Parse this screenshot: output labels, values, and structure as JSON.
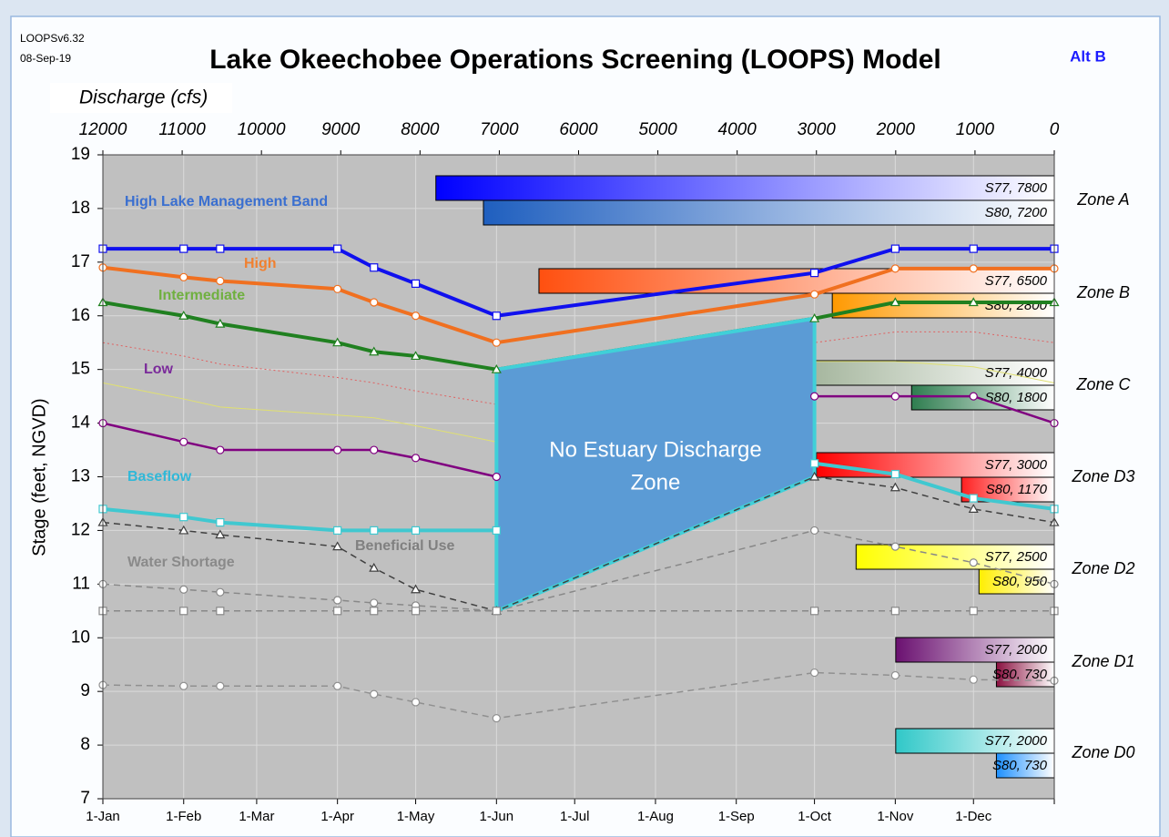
{
  "chart_data": {
    "type": "line",
    "version": "LOOPSv6.32",
    "date": "08-Sep-19",
    "title": "Lake Okeechobee Operations Screening (LOOPS) Model",
    "alternative": "Alt B",
    "x2_label": "Discharge (cfs)",
    "y_label": "Stage (feet, NGVD)",
    "xlim": [
      0,
      365
    ],
    "xticks": [
      {
        "value": 0,
        "label": "1-Jan"
      },
      {
        "value": 31,
        "label": "1-Feb"
      },
      {
        "value": 59,
        "label": "1-Mar"
      },
      {
        "value": 90,
        "label": "1-Apr"
      },
      {
        "value": 120,
        "label": "1-May"
      },
      {
        "value": 151,
        "label": "1-Jun"
      },
      {
        "value": 181,
        "label": "1-Jul"
      },
      {
        "value": 212,
        "label": "1-Aug"
      },
      {
        "value": 243,
        "label": "1-Sep"
      },
      {
        "value": 273,
        "label": "1-Oct"
      },
      {
        "value": 304,
        "label": "1-Nov"
      },
      {
        "value": 334,
        "label": "1-Dec"
      },
      {
        "value": 365,
        "label": ""
      }
    ],
    "x2lim": [
      12000,
      0
    ],
    "x2ticks": [
      12000,
      11000,
      10000,
      9000,
      8000,
      7000,
      6000,
      5000,
      4000,
      3000,
      2000,
      1000,
      0
    ],
    "ylim": [
      7,
      19
    ],
    "yticks": [
      7,
      8,
      9,
      10,
      11,
      12,
      13,
      14,
      15,
      16,
      17,
      18,
      19
    ],
    "grid": true,
    "x": [
      0,
      31,
      45,
      90,
      104,
      120,
      151,
      273,
      304,
      334,
      365
    ],
    "series": [
      {
        "name": "High Lake Management Band",
        "color": "#1010ee",
        "label_color": "#3a6fd0",
        "marker": "square",
        "style": "thick",
        "values": [
          17.25,
          17.25,
          17.25,
          17.25,
          16.9,
          16.6,
          16.0,
          16.8,
          17.25,
          17.25,
          17.25
        ]
      },
      {
        "name": "High",
        "color": "#f07020",
        "label_color": "#f08030",
        "marker": "circle",
        "style": "thick",
        "values": [
          16.9,
          16.72,
          16.65,
          16.5,
          16.25,
          16.0,
          15.5,
          16.4,
          16.88,
          16.88,
          16.88
        ]
      },
      {
        "name": "Intermediate",
        "color": "#208020",
        "label_color": "#70b040",
        "marker": "triangle",
        "style": "thick",
        "values": [
          16.25,
          16.0,
          15.85,
          15.5,
          15.33,
          15.25,
          15.0,
          15.95,
          16.25,
          16.25,
          16.25
        ]
      },
      {
        "name": "Low",
        "color": "#800080",
        "label_color": "#7a2a9a",
        "marker": "circle",
        "style": "medium",
        "values": [
          14.0,
          13.65,
          13.5,
          13.5,
          13.5,
          13.35,
          13.0,
          14.5,
          14.5,
          14.5,
          14.0
        ]
      },
      {
        "name": "Baseflow",
        "color": "#40c8d0",
        "label_color": "#30b8d8",
        "marker": "square",
        "style": "thick",
        "values": [
          12.4,
          12.25,
          12.15,
          12.0,
          12.0,
          12.0,
          12.0,
          13.25,
          13.05,
          12.6,
          12.4
        ]
      },
      {
        "name": "Beneficial Use",
        "color": "#404040",
        "label_color": "#808080",
        "marker": "triangle",
        "style": "dashed",
        "values": [
          12.15,
          12.0,
          11.92,
          11.7,
          11.3,
          10.9,
          10.5,
          13.0,
          12.8,
          12.4,
          12.15
        ]
      },
      {
        "name": "Water Shortage",
        "color": "#888888",
        "label_color": "#8a8a8a",
        "marker": "circle",
        "style": "dashed",
        "values": [
          11.0,
          10.9,
          10.85,
          10.7,
          10.65,
          10.6,
          10.5,
          12.0,
          11.7,
          11.4,
          11.0
        ]
      },
      {
        "color": "#888888",
        "marker": "square",
        "style": "dashed",
        "values": [
          10.5,
          10.5,
          10.5,
          10.5,
          10.5,
          10.5,
          10.5,
          10.5,
          10.5,
          10.5,
          10.5
        ]
      },
      {
        "color": "#909090",
        "marker": "circle",
        "style": "dashed",
        "values": [
          9.12,
          9.1,
          9.1,
          9.1,
          8.95,
          8.8,
          8.5,
          9.35,
          9.3,
          9.22,
          9.2
        ]
      },
      {
        "color": "#e06060",
        "style": "dotted",
        "values": [
          15.5,
          15.25,
          15.1,
          14.85,
          14.75,
          14.6,
          14.35,
          15.5,
          15.7,
          15.7,
          15.5
        ]
      },
      {
        "color": "#e0e070",
        "style": "thin",
        "values": [
          14.75,
          14.45,
          14.3,
          14.15,
          14.1,
          13.95,
          13.65,
          15.15,
          15.15,
          15.05,
          14.75
        ]
      }
    ],
    "zone_label": [
      "No Estuary Discharge",
      "Zone"
    ],
    "discharge_zones": [
      {
        "name": "Zone A",
        "bars": [
          {
            "value": 7800,
            "label": "S77, 7800",
            "color": "#0000ff"
          },
          {
            "value": 7200,
            "label": "S80, 7200",
            "color": "#1f5fbf"
          }
        ]
      },
      {
        "name": "Zone B",
        "bars": [
          {
            "value": 6500,
            "label": "S77, 6500",
            "color": "#ff5010"
          },
          {
            "value": 2800,
            "label": "S80, 2800",
            "color": "#ff9900"
          }
        ]
      },
      {
        "name": "Zone C",
        "bars": [
          {
            "value": 4000,
            "label": "S77, 4000",
            "color": "#8aa080"
          },
          {
            "value": 1800,
            "label": "S80, 1800",
            "color": "#2e7d4f"
          }
        ]
      },
      {
        "name": "Zone D3",
        "bars": [
          {
            "value": 3000,
            "label": "S77, 3000",
            "color": "#ff0000"
          },
          {
            "value": 1170,
            "label": "S80, 1170",
            "color": "#ff2020"
          }
        ]
      },
      {
        "name": "Zone D2",
        "bars": [
          {
            "value": 2500,
            "label": "S77, 2500",
            "color": "#ffff00"
          },
          {
            "value": 950,
            "label": "S80, 950",
            "color": "#ffee00"
          }
        ]
      },
      {
        "name": "Zone D1",
        "bars": [
          {
            "value": 2000,
            "label": "S77, 2000",
            "color": "#6a1070"
          },
          {
            "value": 730,
            "label": "S80, 730",
            "color": "#8b1040"
          }
        ]
      },
      {
        "name": "Zone D0",
        "bars": [
          {
            "value": 2000,
            "label": "S77, 2000",
            "color": "#30c8c8"
          },
          {
            "value": 730,
            "label": "S80, 730",
            "color": "#1e90ff"
          }
        ]
      }
    ]
  }
}
